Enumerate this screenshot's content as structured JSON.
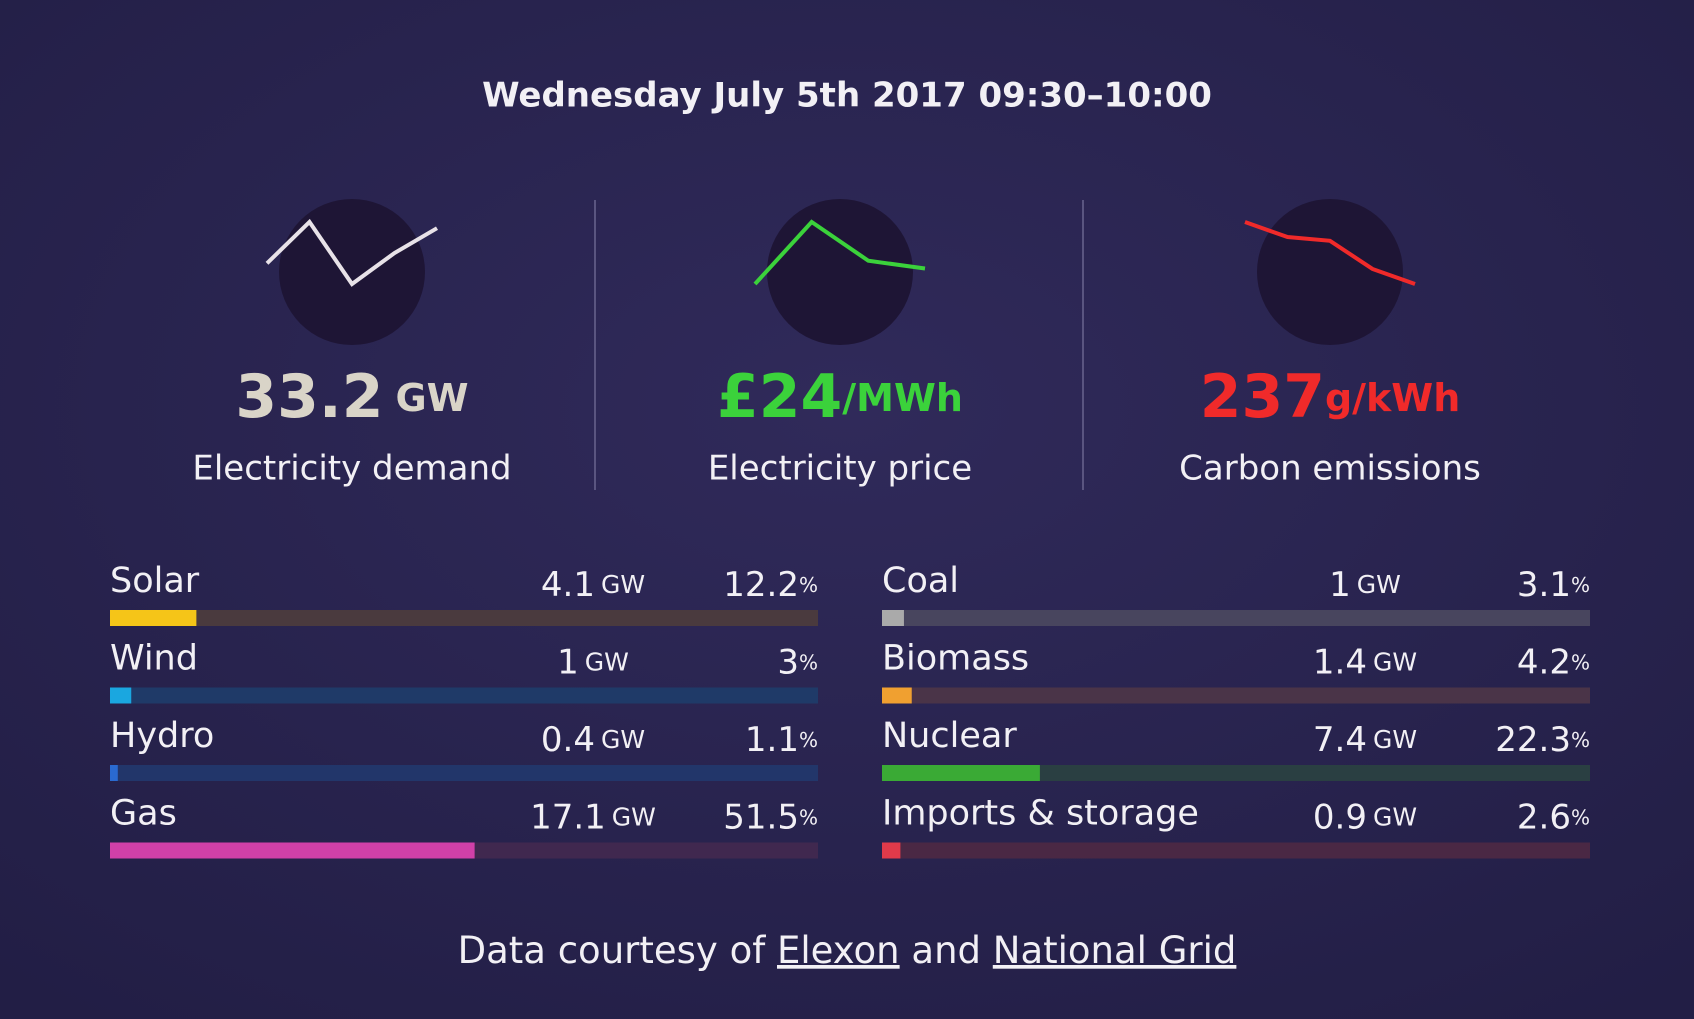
{
  "header": {
    "title": "Wednesday July 5th 2017 09:30–10:00"
  },
  "metrics": [
    {
      "label": "Electricity demand",
      "prefix": "",
      "value": 33.2,
      "unit": "GW",
      "color": "#d9d4c8",
      "trend": [
        31.5,
        33.5,
        30.5,
        32.0,
        33.2
      ]
    },
    {
      "label": "Electricity price",
      "prefix": "£",
      "value": 24,
      "unit": "/MWh",
      "color": "#3bd23b",
      "trend": [
        22,
        30,
        25,
        24
      ]
    },
    {
      "label": "Carbon emissions",
      "prefix": "",
      "value": 237,
      "unit": "g/kWh",
      "color": "#f02a2a",
      "trend": [
        270,
        262,
        260,
        245,
        237
      ]
    }
  ],
  "units": {
    "power": "GW",
    "share": "%"
  },
  "sources": [
    {
      "name": "Solar",
      "power": 4.1,
      "share": 12.2,
      "color": "#f5c518",
      "track": "#4a3a3e"
    },
    {
      "name": "Wind",
      "power": 1,
      "share": 3,
      "color": "#1aa7e0",
      "track": "#1f3a68"
    },
    {
      "name": "Hydro",
      "power": 0.4,
      "share": 1.1,
      "color": "#2a6ad0",
      "track": "#22366a"
    },
    {
      "name": "Gas",
      "power": 17.1,
      "share": 51.5,
      "color": "#d040a8",
      "track": "#40284f"
    },
    {
      "name": "Coal",
      "power": 1,
      "share": 3.1,
      "color": "#aaaaaa",
      "track": "#48455e"
    },
    {
      "name": "Biomass",
      "power": 1.4,
      "share": 4.2,
      "color": "#f0a030",
      "track": "#4a3448"
    },
    {
      "name": "Nuclear",
      "power": 7.4,
      "share": 22.3,
      "color": "#3aaa35",
      "track": "#2a3f42"
    },
    {
      "name": "Imports & storage",
      "power": 0.9,
      "share": 2.6,
      "color": "#e03a4a",
      "track": "#4a2844"
    }
  ],
  "footer": {
    "text": "Data courtesy of",
    "link1": "Elexon",
    "joiner": "and",
    "link2": "National Grid"
  }
}
